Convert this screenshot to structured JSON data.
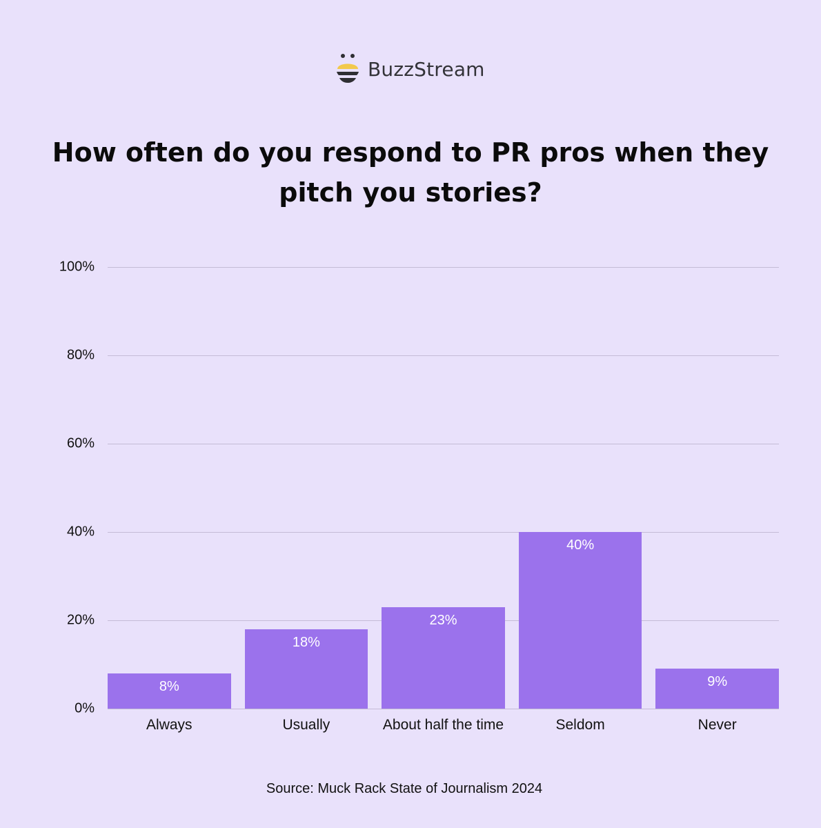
{
  "brand": {
    "name": "BuzzStream",
    "icon": "bee-logo-icon",
    "colors": {
      "yellow": "#f2c94c",
      "dark": "#333338"
    }
  },
  "header": {
    "title": "How often do you respond to PR pros when they pitch you stories?"
  },
  "footer": {
    "source": "Source: Muck Rack State of Journalism 2024"
  },
  "colors": {
    "background": "#e9e1fb",
    "bar": "#9b72ec",
    "grid": "#c4bbd6"
  },
  "chart_data": {
    "type": "bar",
    "title": "How often do you respond to PR pros when they pitch you stories?",
    "categories": [
      "Always",
      "Usually",
      "About half the time",
      "Seldom",
      "Never"
    ],
    "values": [
      8,
      18,
      23,
      40,
      9
    ],
    "value_labels": [
      "8%",
      "18%",
      "23%",
      "40%",
      "9%"
    ],
    "xlabel": "",
    "ylabel": "",
    "ylim": [
      0,
      100
    ],
    "yticks": [
      "0%",
      "20%",
      "40%",
      "60%",
      "80%",
      "100%"
    ],
    "grid": true,
    "legend": null,
    "source": "Source: Muck Rack State of Journalism 2024"
  }
}
